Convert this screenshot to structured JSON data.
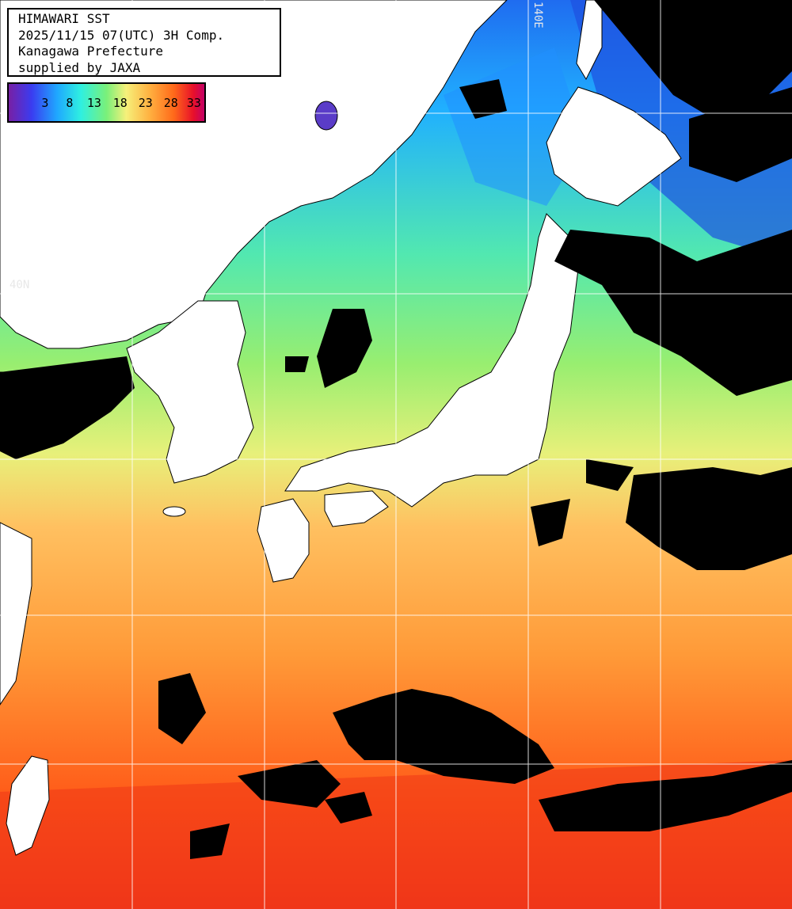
{
  "header": {
    "title": "HIMAWARI SST",
    "datetime": "2025/11/15 07(UTC) 3H Comp.",
    "region": "Kanagawa Prefecture",
    "credit": "supplied by JAXA"
  },
  "legend": {
    "ticks": [
      "3",
      "8",
      "13",
      "18",
      "23",
      "28",
      "33"
    ],
    "colors": [
      "#7a1fa2",
      "#3a3cf0",
      "#1fa8ff",
      "#2ff0e0",
      "#7af07a",
      "#f6f07a",
      "#ffb040",
      "#ff6a1a",
      "#e8102a",
      "#c0006a"
    ]
  },
  "grid_labels": {
    "lon": "140E",
    "lat": "40N"
  },
  "colors": {
    "land": "#ffffff",
    "cloud": "#000000",
    "grid": "#ffffff"
  }
}
